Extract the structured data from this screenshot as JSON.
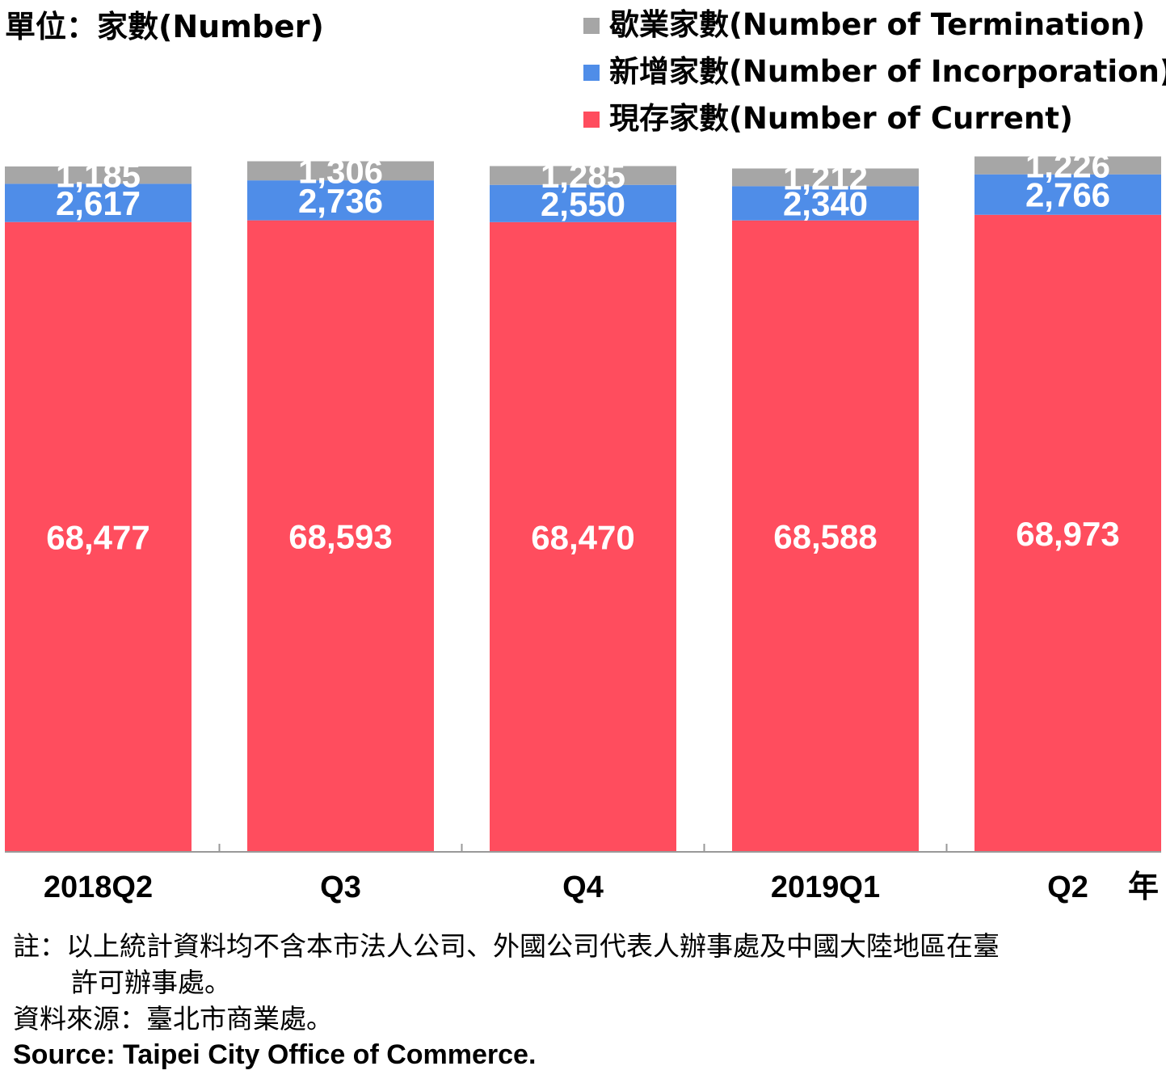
{
  "unit_label": "單位：家數(Number)",
  "legend": [
    {
      "label": "歇業家數(Number of Termination)",
      "color": "#a6a6a6"
    },
    {
      "label": "新增家數(Number of Incorporation)",
      "color": "#4f8de8"
    },
    {
      "label": "現存家數(Number of Current)",
      "color": "#ff4d5e"
    }
  ],
  "chart_data": {
    "type": "bar",
    "stacked": true,
    "categories": [
      "2018Q2",
      "Q3",
      "Q4",
      "2019Q1",
      "Q2"
    ],
    "x_unit": "年",
    "series": [
      {
        "name": "現存家數(Number of Current)",
        "color": "#ff4d5e",
        "values": [
          68477,
          68593,
          68470,
          68588,
          68973
        ],
        "labels": [
          "68,477",
          "68,593",
          "68,470",
          "68,588",
          "68,973"
        ]
      },
      {
        "name": "新增家數(Number of Incorporation)",
        "color": "#4f8de8",
        "values": [
          2617,
          2736,
          2550,
          2340,
          2766
        ],
        "labels": [
          "2,617",
          "2,736",
          "2,550",
          "2,340",
          "2,766"
        ]
      },
      {
        "name": "歇業家數(Number of Termination)",
        "color": "#a6a6a6",
        "values": [
          1185,
          1306,
          1285,
          1212,
          1226
        ],
        "labels": [
          "1,185",
          "1,306",
          "1,285",
          "1,212",
          "1,226"
        ]
      }
    ],
    "grid": false,
    "legend_position": "top-right"
  },
  "notes": {
    "line1": "註：以上統計資料均不含本市法人公司、外國公司代表人辦事處及中國大陸地區在臺",
    "line2": "許可辦事處。",
    "source_zh": "資料來源：臺北市商業處。",
    "source_en": "Source: Taipei City Office of Commerce."
  }
}
